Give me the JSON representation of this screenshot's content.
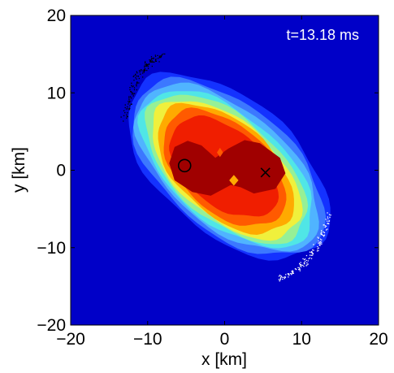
{
  "chart_data": {
    "type": "contour",
    "title": "",
    "annotation": "t=13.18 ms",
    "xlabel": "x [km]",
    "ylabel": "y [km]",
    "xlim": [
      -20,
      20
    ],
    "ylim": [
      -20,
      20
    ],
    "xticks": [
      -20,
      -10,
      0,
      10,
      20
    ],
    "yticks": [
      -20,
      -10,
      0,
      10,
      20
    ],
    "xtick_labels": [
      "−20",
      "−10",
      "0",
      "10",
      "20"
    ],
    "ytick_labels": [
      "−20",
      "−10",
      "0",
      "10",
      "20"
    ],
    "background_color": "#0000c8",
    "colormap": "jet",
    "grid": false,
    "legend": "none",
    "contour_levels": [
      {
        "level": 1,
        "color": "#1432ff",
        "center": [
          0.5,
          0.5
        ],
        "semi_axes": [
          15.5,
          8.7
        ],
        "angle_deg": -40
      },
      {
        "level": 2,
        "color": "#3c78ff",
        "center": [
          0.5,
          0.3
        ],
        "semi_axes": [
          14.8,
          8.1
        ],
        "angle_deg": -40
      },
      {
        "level": 3,
        "color": "#50b4ff",
        "center": [
          0.4,
          0.3
        ],
        "semi_axes": [
          14.2,
          7.5
        ],
        "angle_deg": -40
      },
      {
        "level": 4,
        "color": "#50e6e6",
        "center": [
          0.3,
          0.2
        ],
        "semi_axes": [
          13.4,
          7.0
        ],
        "angle_deg": -40
      },
      {
        "level": 5,
        "color": "#96f096",
        "center": [
          0.2,
          0.2
        ],
        "semi_axes": [
          12.6,
          6.6
        ],
        "angle_deg": -41
      },
      {
        "level": 6,
        "color": "#f0f03c",
        "center": [
          0.2,
          0.1
        ],
        "semi_axes": [
          11.7,
          6.2
        ],
        "angle_deg": -41
      },
      {
        "level": 7,
        "color": "#ffaa00",
        "center": [
          0.1,
          0.2
        ],
        "semi_axes": [
          10.6,
          6.0
        ],
        "angle_deg": -42
      },
      {
        "level": 8,
        "color": "#ff5a00",
        "center": [
          0.0,
          0.3
        ],
        "semi_axes": [
          9.4,
          5.6
        ],
        "angle_deg": -42
      },
      {
        "level": 9,
        "color": "#f01e00",
        "center": [
          0.0,
          0.4
        ],
        "semi_axes": [
          8.2,
          4.9
        ],
        "angle_deg": -40
      }
    ],
    "core_region": {
      "color": "#a00000",
      "points": [
        [
          -6.5,
          3.0
        ],
        [
          -4.8,
          3.8
        ],
        [
          -3.0,
          3.2
        ],
        [
          -1.2,
          1.6
        ],
        [
          0.5,
          2.8
        ],
        [
          2.6,
          3.9
        ],
        [
          4.6,
          3.5
        ],
        [
          7.2,
          1.6
        ],
        [
          7.9,
          -0.4
        ],
        [
          6.6,
          -2.4
        ],
        [
          3.8,
          -3.0
        ],
        [
          2.1,
          -2.2
        ],
        [
          0.8,
          -1.9
        ],
        [
          -1.8,
          -3.3
        ],
        [
          -4.2,
          -2.8
        ],
        [
          -6.5,
          -1.3
        ],
        [
          -7.2,
          0.9
        ]
      ]
    },
    "markers": [
      {
        "symbol": "circle",
        "x": -5.2,
        "y": 0.6
      },
      {
        "symbol": "cross",
        "x": 5.3,
        "y": -0.3
      }
    ],
    "tracer_streams": [
      {
        "color": "#000000",
        "start": [
          -13.0,
          6.5
        ],
        "control": [
          -11.5,
          14.2
        ],
        "end": [
          -8.2,
          14.6
        ],
        "count": 140,
        "spread": 0.45
      },
      {
        "color": "#ffffff",
        "start": [
          13.5,
          -5.7
        ],
        "control": [
          11.8,
          -12.5
        ],
        "end": [
          7.0,
          -14.0
        ],
        "count": 130,
        "spread": 0.4
      }
    ]
  }
}
